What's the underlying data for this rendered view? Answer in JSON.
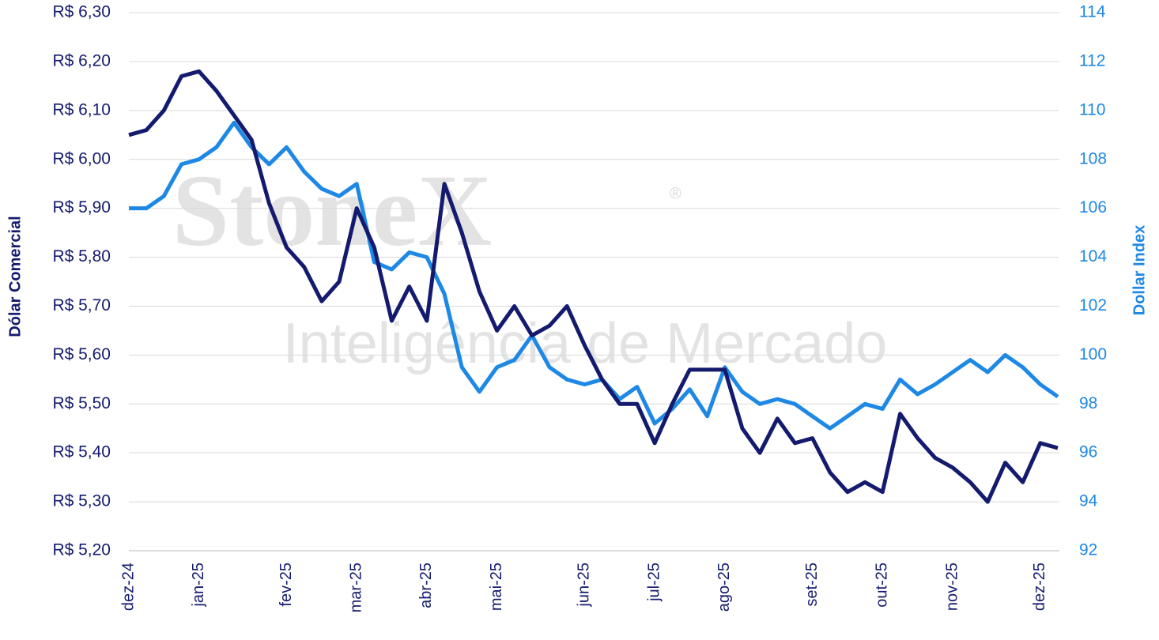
{
  "chart_data": {
    "type": "line",
    "watermark": [
      "StoneX",
      "®",
      "Inteligência de Mercado"
    ],
    "y_label": "Dólar Comercial",
    "y2_label": "Dollar Index",
    "categories": [
      "dez-24",
      null,
      null,
      null,
      "jan-25",
      null,
      null,
      null,
      null,
      "fev-25",
      null,
      null,
      null,
      "mar-25",
      null,
      null,
      null,
      "abr-25",
      null,
      null,
      null,
      "mai-25",
      null,
      null,
      null,
      null,
      "jun-25",
      null,
      null,
      null,
      "jul-25",
      null,
      null,
      null,
      "ago-25",
      null,
      null,
      null,
      null,
      "set-25",
      null,
      null,
      null,
      "out-25",
      null,
      null,
      null,
      "nov-25",
      null,
      null,
      null,
      null,
      "dez-25",
      null
    ],
    "series": [
      {
        "color": "#141b6e",
        "axis": "y",
        "values": [
          6.05,
          6.06,
          6.1,
          6.17,
          6.18,
          6.14,
          6.09,
          6.04,
          5.91,
          5.82,
          5.78,
          5.71,
          5.75,
          5.9,
          5.82,
          5.67,
          5.74,
          5.67,
          5.95,
          5.85,
          5.73,
          5.65,
          5.7,
          5.64,
          5.66,
          5.7,
          5.62,
          5.55,
          5.5,
          5.5,
          5.42,
          5.5,
          5.57,
          5.57,
          5.57,
          5.45,
          5.4,
          5.47,
          5.42,
          5.43,
          5.36,
          5.32,
          5.34,
          5.32,
          5.48,
          5.43,
          5.39,
          5.37,
          5.34,
          5.3,
          5.38,
          5.34,
          5.42,
          5.41
        ]
      },
      {
        "color": "#1e88e5",
        "axis": "y2",
        "values": [
          106.0,
          106.0,
          106.5,
          107.8,
          108.0,
          108.5,
          109.5,
          108.5,
          107.8,
          108.5,
          107.5,
          106.8,
          106.5,
          107.0,
          103.8,
          103.5,
          104.2,
          104.0,
          102.5,
          99.5,
          98.5,
          99.5,
          99.8,
          100.8,
          99.5,
          99.0,
          98.8,
          99.0,
          98.2,
          98.7,
          97.2,
          97.8,
          98.6,
          97.5,
          99.5,
          98.5,
          98.0,
          98.2,
          98.0,
          97.5,
          97.0,
          97.5,
          98.0,
          97.8,
          99.0,
          98.4,
          98.8,
          99.3,
          99.8,
          99.3,
          100.0,
          99.5,
          98.8,
          98.3
        ]
      }
    ],
    "ylim": [
      5.2,
      6.3
    ],
    "yticks": [
      {
        "value": 5.2,
        "label": "R$ 5,20"
      },
      {
        "value": 5.3,
        "label": "R$ 5,30"
      },
      {
        "value": 5.4,
        "label": "R$ 5,40"
      },
      {
        "value": 5.5,
        "label": "R$ 5,50"
      },
      {
        "value": 5.6,
        "label": "R$ 5,60"
      },
      {
        "value": 5.7,
        "label": "R$ 5,70"
      },
      {
        "value": 5.8,
        "label": "R$ 5,80"
      },
      {
        "value": 5.9,
        "label": "R$ 5,90"
      },
      {
        "value": 6.0,
        "label": "R$ 6,00"
      },
      {
        "value": 6.1,
        "label": "R$ 6,10"
      },
      {
        "value": 6.2,
        "label": "R$ 6,20"
      },
      {
        "value": 6.3,
        "label": "R$ 6,30"
      }
    ],
    "y2lim": [
      92,
      114
    ],
    "y2ticks": [
      92,
      94,
      96,
      98,
      100,
      102,
      104,
      106,
      108,
      110,
      112,
      114
    ],
    "grid": true
  }
}
